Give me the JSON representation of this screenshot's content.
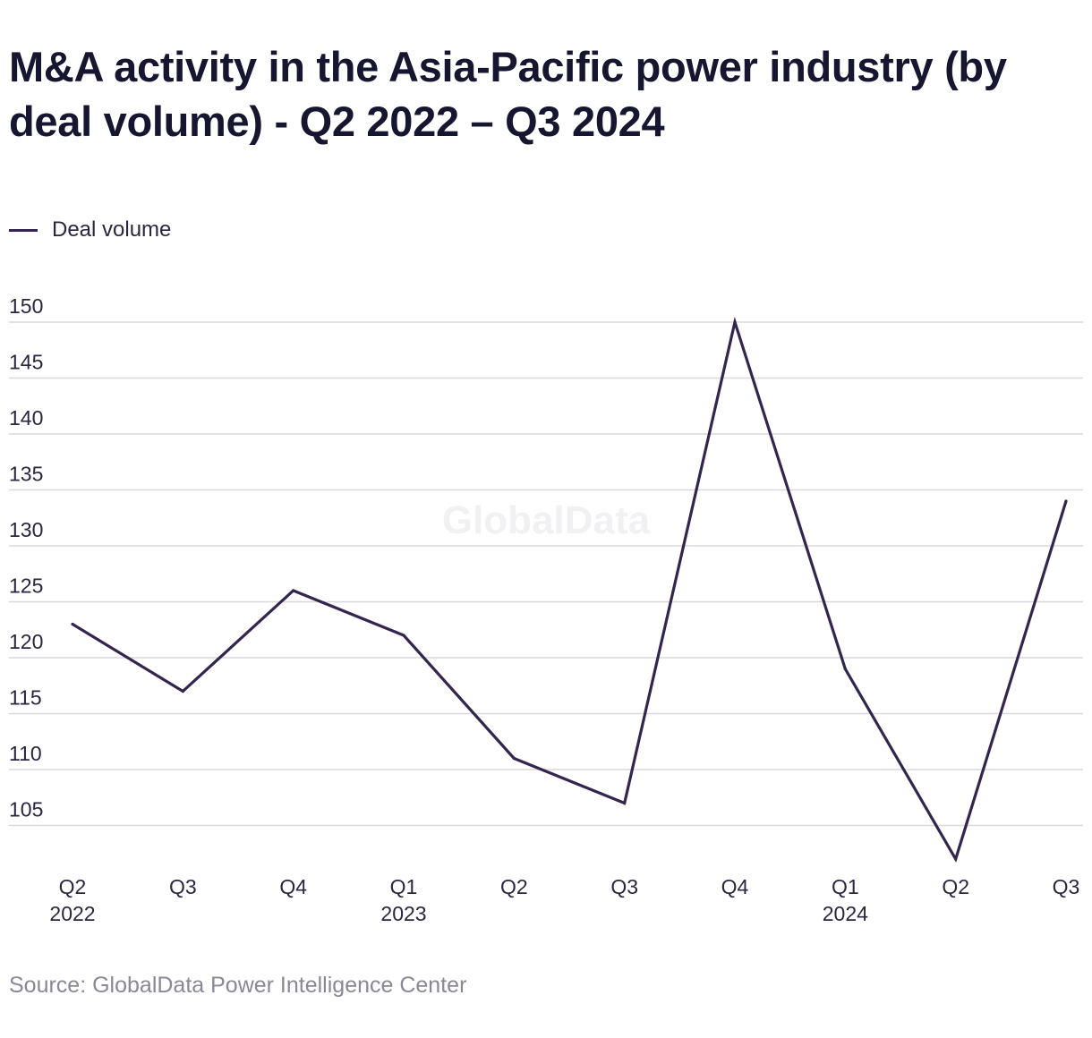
{
  "chart_data": {
    "type": "line",
    "title": "M&A activity in the Asia-Pacific power industry (by deal volume) - Q2 2022 – Q3 2024",
    "categories": [
      {
        "quarter": "Q2",
        "year": "2022"
      },
      {
        "quarter": "Q3",
        "year": ""
      },
      {
        "quarter": "Q4",
        "year": ""
      },
      {
        "quarter": "Q1",
        "year": "2023"
      },
      {
        "quarter": "Q2",
        "year": ""
      },
      {
        "quarter": "Q3",
        "year": ""
      },
      {
        "quarter": "Q4",
        "year": ""
      },
      {
        "quarter": "Q1",
        "year": "2024"
      },
      {
        "quarter": "Q2",
        "year": ""
      },
      {
        "quarter": "Q3",
        "year": ""
      }
    ],
    "series": [
      {
        "name": "Deal volume",
        "color": "#34254f",
        "values": [
          123,
          117,
          126,
          122,
          111,
          107,
          150,
          119,
          102,
          134
        ]
      }
    ],
    "yticks": [
      150,
      145,
      140,
      135,
      130,
      125,
      120,
      115,
      110,
      105
    ],
    "ylim": [
      102,
      150
    ],
    "grid": true,
    "legend_position": "top-left",
    "watermark": "GlobalData",
    "source": "Source: GlobalData Power Intelligence Center"
  }
}
